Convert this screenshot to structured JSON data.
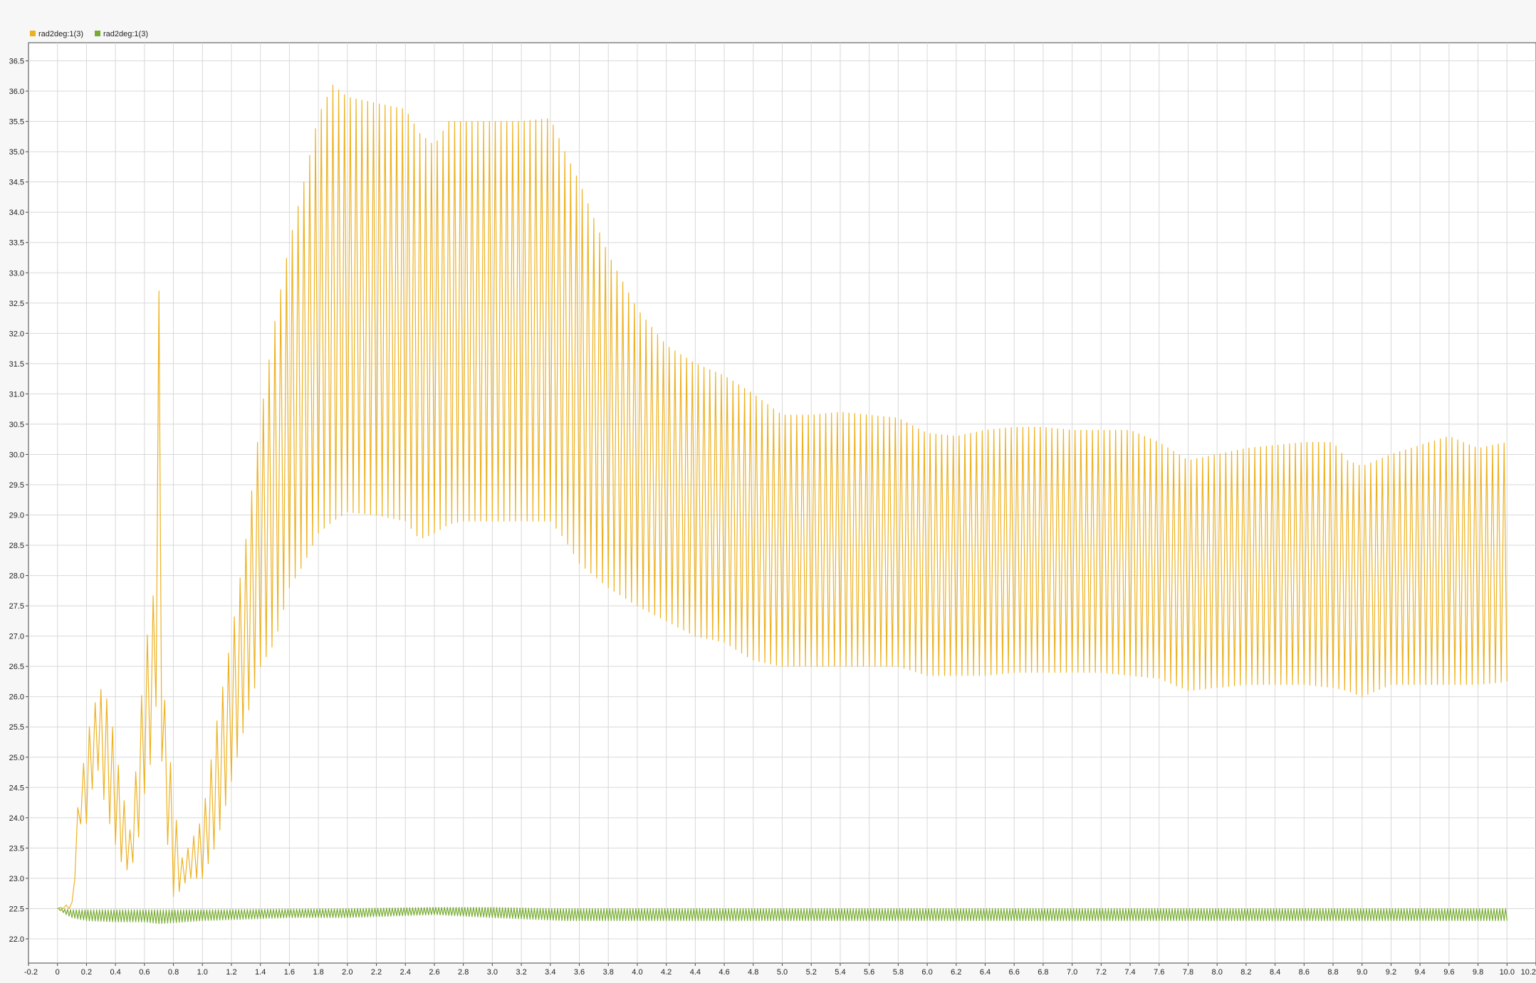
{
  "chart_data": {
    "type": "line",
    "title": "",
    "xlabel": "",
    "ylabel": "",
    "xlim": [
      -0.2,
      10.2
    ],
    "ylim": [
      21.6,
      36.8
    ],
    "grid": true,
    "legend_position": "top-left",
    "x_ticks": [
      "-0.2",
      "0",
      "0.2",
      "0.4",
      "0.6",
      "0.8",
      "1.0",
      "1.2",
      "1.4",
      "1.6",
      "1.8",
      "2.0",
      "2.2",
      "2.4",
      "2.6",
      "2.8",
      "3.0",
      "3.2",
      "3.4",
      "3.6",
      "3.8",
      "4.0",
      "4.2",
      "4.4",
      "4.6",
      "4.8",
      "5.0",
      "5.2",
      "5.4",
      "5.6",
      "5.8",
      "6.0",
      "6.2",
      "6.4",
      "6.6",
      "6.8",
      "7.0",
      "7.2",
      "7.4",
      "7.6",
      "7.8",
      "8.0",
      "8.2",
      "8.4",
      "8.6",
      "8.8",
      "9.0",
      "9.2",
      "9.4",
      "9.6",
      "9.8",
      "10.0",
      "10.2"
    ],
    "y_ticks": [
      "22.0",
      "22.5",
      "23.0",
      "23.5",
      "24.0",
      "24.5",
      "25.0",
      "25.5",
      "26.0",
      "26.5",
      "27.0",
      "27.5",
      "28.0",
      "28.5",
      "29.0",
      "29.5",
      "30.0",
      "30.5",
      "31.0",
      "31.5",
      "32.0",
      "32.5",
      "33.0",
      "33.5",
      "34.0",
      "34.5",
      "35.0",
      "35.5",
      "36.0",
      "36.5"
    ],
    "series": [
      {
        "name": "rad2deg:1(3)",
        "color": "#EDB120",
        "oscillation_period": 0.04,
        "upper_envelope": [
          [
            0,
            22.5
          ],
          [
            0.1,
            22.6
          ],
          [
            0.12,
            23.9
          ],
          [
            0.15,
            24.3
          ],
          [
            0.2,
            25.3
          ],
          [
            0.27,
            26.0
          ],
          [
            0.32,
            26.2
          ],
          [
            0.38,
            25.5
          ],
          [
            0.45,
            24.4
          ],
          [
            0.5,
            23.8
          ],
          [
            0.55,
            25.0
          ],
          [
            0.6,
            26.7
          ],
          [
            0.65,
            27.5
          ],
          [
            0.68,
            28.0
          ],
          [
            0.7,
            32.7
          ],
          [
            0.73,
            26.2
          ],
          [
            0.8,
            24.4
          ],
          [
            0.85,
            23.3
          ],
          [
            0.9,
            23.5
          ],
          [
            1.0,
            24.0
          ],
          [
            1.1,
            25.6
          ],
          [
            1.2,
            27.0
          ],
          [
            1.3,
            28.6
          ],
          [
            1.4,
            30.6
          ],
          [
            1.5,
            32.2
          ],
          [
            1.6,
            33.5
          ],
          [
            1.7,
            34.5
          ],
          [
            1.8,
            35.6
          ],
          [
            1.9,
            36.1
          ],
          [
            2.0,
            35.9
          ],
          [
            2.2,
            35.8
          ],
          [
            2.4,
            35.7
          ],
          [
            2.5,
            35.3
          ],
          [
            2.6,
            35.1
          ],
          [
            2.7,
            35.5
          ],
          [
            2.8,
            35.5
          ],
          [
            3.0,
            35.5
          ],
          [
            3.2,
            35.5
          ],
          [
            3.4,
            35.55
          ],
          [
            3.5,
            35.0
          ],
          [
            3.6,
            34.5
          ],
          [
            3.8,
            33.3
          ],
          [
            4.0,
            32.4
          ],
          [
            4.2,
            31.8
          ],
          [
            4.4,
            31.5
          ],
          [
            4.6,
            31.3
          ],
          [
            4.8,
            31.0
          ],
          [
            5.0,
            30.65
          ],
          [
            5.2,
            30.65
          ],
          [
            5.4,
            30.7
          ],
          [
            5.6,
            30.65
          ],
          [
            5.8,
            30.6
          ],
          [
            6.0,
            30.35
          ],
          [
            6.2,
            30.3
          ],
          [
            6.4,
            30.4
          ],
          [
            6.6,
            30.45
          ],
          [
            6.8,
            30.45
          ],
          [
            7.0,
            30.4
          ],
          [
            7.2,
            30.4
          ],
          [
            7.4,
            30.4
          ],
          [
            7.6,
            30.2
          ],
          [
            7.8,
            29.9
          ],
          [
            8.0,
            30.0
          ],
          [
            8.2,
            30.1
          ],
          [
            8.4,
            30.15
          ],
          [
            8.6,
            30.2
          ],
          [
            8.8,
            30.2
          ],
          [
            8.9,
            29.9
          ],
          [
            9.0,
            29.8
          ],
          [
            9.2,
            30.0
          ],
          [
            9.4,
            30.15
          ],
          [
            9.6,
            30.3
          ],
          [
            9.8,
            30.1
          ],
          [
            10.0,
            30.2
          ]
        ],
        "lower_envelope": [
          [
            0,
            22.5
          ],
          [
            0.1,
            22.5
          ],
          [
            0.12,
            23.0
          ],
          [
            0.15,
            23.9
          ],
          [
            0.2,
            23.9
          ],
          [
            0.27,
            24.9
          ],
          [
            0.32,
            24.3
          ],
          [
            0.38,
            23.7
          ],
          [
            0.45,
            23.2
          ],
          [
            0.5,
            23.1
          ],
          [
            0.55,
            23.5
          ],
          [
            0.6,
            24.4
          ],
          [
            0.65,
            25.0
          ],
          [
            0.7,
            26.4
          ],
          [
            0.73,
            24.2
          ],
          [
            0.8,
            22.7
          ],
          [
            0.85,
            22.8
          ],
          [
            0.9,
            23.0
          ],
          [
            1.0,
            23.0
          ],
          [
            1.1,
            23.6
          ],
          [
            1.2,
            24.6
          ],
          [
            1.3,
            25.6
          ],
          [
            1.4,
            26.5
          ],
          [
            1.5,
            26.9
          ],
          [
            1.6,
            27.8
          ],
          [
            1.7,
            28.2
          ],
          [
            1.8,
            28.7
          ],
          [
            1.9,
            28.9
          ],
          [
            2.0,
            29.05
          ],
          [
            2.2,
            29.0
          ],
          [
            2.4,
            28.9
          ],
          [
            2.5,
            28.6
          ],
          [
            2.6,
            28.7
          ],
          [
            2.7,
            28.85
          ],
          [
            2.8,
            28.9
          ],
          [
            3.0,
            28.9
          ],
          [
            3.2,
            28.9
          ],
          [
            3.4,
            28.9
          ],
          [
            3.5,
            28.6
          ],
          [
            3.6,
            28.2
          ],
          [
            3.8,
            27.8
          ],
          [
            4.0,
            27.5
          ],
          [
            4.2,
            27.25
          ],
          [
            4.4,
            27.0
          ],
          [
            4.6,
            26.9
          ],
          [
            4.8,
            26.6
          ],
          [
            5.0,
            26.5
          ],
          [
            5.2,
            26.5
          ],
          [
            5.4,
            26.5
          ],
          [
            5.6,
            26.5
          ],
          [
            5.8,
            26.5
          ],
          [
            6.0,
            26.35
          ],
          [
            6.2,
            26.35
          ],
          [
            6.4,
            26.35
          ],
          [
            6.6,
            26.4
          ],
          [
            6.8,
            26.4
          ],
          [
            7.0,
            26.4
          ],
          [
            7.2,
            26.4
          ],
          [
            7.4,
            26.35
          ],
          [
            7.6,
            26.3
          ],
          [
            7.8,
            26.1
          ],
          [
            8.0,
            26.15
          ],
          [
            8.2,
            26.2
          ],
          [
            8.4,
            26.2
          ],
          [
            8.6,
            26.2
          ],
          [
            8.8,
            26.15
          ],
          [
            8.9,
            26.1
          ],
          [
            9.0,
            26.0
          ],
          [
            9.2,
            26.2
          ],
          [
            9.4,
            26.2
          ],
          [
            9.6,
            26.2
          ],
          [
            9.8,
            26.2
          ],
          [
            10.0,
            26.25
          ]
        ]
      },
      {
        "name": "rad2deg:1(3)",
        "color": "#77AC30",
        "oscillation_period": 0.02,
        "upper_envelope": [
          [
            0,
            22.5
          ],
          [
            0.1,
            22.48
          ],
          [
            1.0,
            22.48
          ],
          [
            2.0,
            22.5
          ],
          [
            2.6,
            22.52
          ],
          [
            3.0,
            22.52
          ],
          [
            3.4,
            22.5
          ],
          [
            4.0,
            22.5
          ],
          [
            6.0,
            22.5
          ],
          [
            8.0,
            22.5
          ],
          [
            10.0,
            22.5
          ]
        ],
        "lower_envelope": [
          [
            0,
            22.5
          ],
          [
            0.06,
            22.4
          ],
          [
            0.1,
            22.35
          ],
          [
            0.2,
            22.3
          ],
          [
            0.4,
            22.28
          ],
          [
            0.6,
            22.28
          ],
          [
            0.7,
            22.25
          ],
          [
            1.0,
            22.3
          ],
          [
            1.6,
            22.35
          ],
          [
            2.0,
            22.35
          ],
          [
            2.6,
            22.4
          ],
          [
            3.0,
            22.35
          ],
          [
            3.5,
            22.3
          ],
          [
            4.0,
            22.3
          ],
          [
            6.0,
            22.3
          ],
          [
            8.0,
            22.3
          ],
          [
            10.0,
            22.3
          ]
        ]
      }
    ]
  }
}
